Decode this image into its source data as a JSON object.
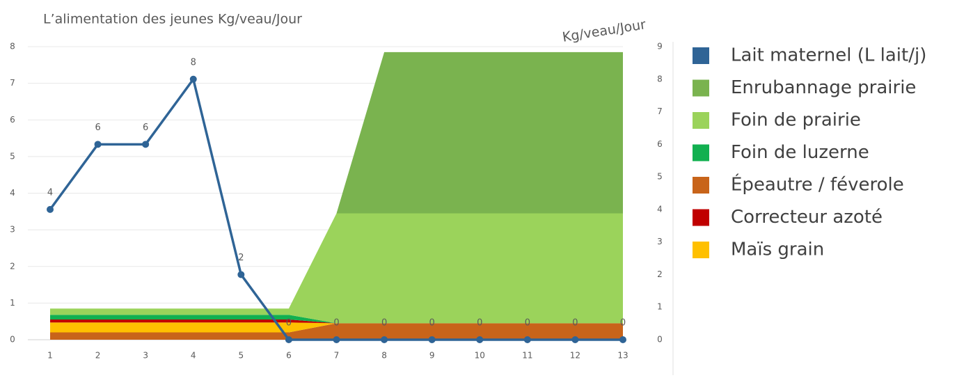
{
  "chart_data": {
    "type": "stacked_area_line",
    "title": "L’alimentation des jeunes Kg/veau/Jour",
    "y2_label": "Kg/veau/Jour",
    "categories": [
      "1",
      "2",
      "3",
      "4",
      "5",
      "6",
      "7",
      "8",
      "9",
      "10",
      "11",
      "12",
      "13"
    ],
    "ylim": [
      0,
      8
    ],
    "yticks": [
      0,
      1,
      2,
      3,
      4,
      5,
      6,
      7,
      8
    ],
    "y2lim": [
      0,
      9
    ],
    "y2ticks": [
      0,
      1,
      2,
      3,
      4,
      5,
      6,
      7,
      8,
      9
    ],
    "legend": "right",
    "series": [
      {
        "name": "Lait maternel (L lait/j)",
        "color": "#2f6496",
        "type": "line",
        "axis": "y2",
        "values": [
          4,
          6,
          6,
          8,
          2,
          0,
          0,
          0,
          0,
          0,
          0,
          0,
          0
        ]
      },
      {
        "name": "Enrubannage prairie",
        "color": "#7ab34f",
        "values": [
          0,
          0,
          0,
          0,
          0,
          0,
          0,
          4.4,
          4.4,
          4.4,
          4.4,
          4.4,
          4.4
        ]
      },
      {
        "name": "Foin de prairie",
        "color": "#9bd35b",
        "values": [
          0.17,
          0.17,
          0.17,
          0.17,
          0.17,
          0.17,
          3,
          3,
          3,
          3,
          3,
          3,
          3
        ]
      },
      {
        "name": "Foin de luzerne",
        "color": "#12b050",
        "values": [
          0.13,
          0.13,
          0.13,
          0.13,
          0.13,
          0.13,
          0,
          0,
          0,
          0,
          0,
          0,
          0
        ]
      },
      {
        "name": "Épeautre / féverole",
        "color": "#c8641a",
        "values": [
          0.2,
          0.2,
          0.2,
          0.2,
          0.2,
          0.2,
          0.45,
          0.45,
          0.45,
          0.45,
          0.45,
          0.45,
          0.45
        ]
      },
      {
        "name": "Correcteur azoté",
        "color": "#c00000",
        "values": [
          0.08,
          0.08,
          0.08,
          0.08,
          0.08,
          0.08,
          0,
          0,
          0,
          0,
          0,
          0,
          0
        ]
      },
      {
        "name": "Maïs grain",
        "color": "#ffc000",
        "values": [
          0.27,
          0.27,
          0.27,
          0.27,
          0.27,
          0.27,
          0,
          0,
          0,
          0,
          0,
          0,
          0
        ]
      }
    ]
  }
}
